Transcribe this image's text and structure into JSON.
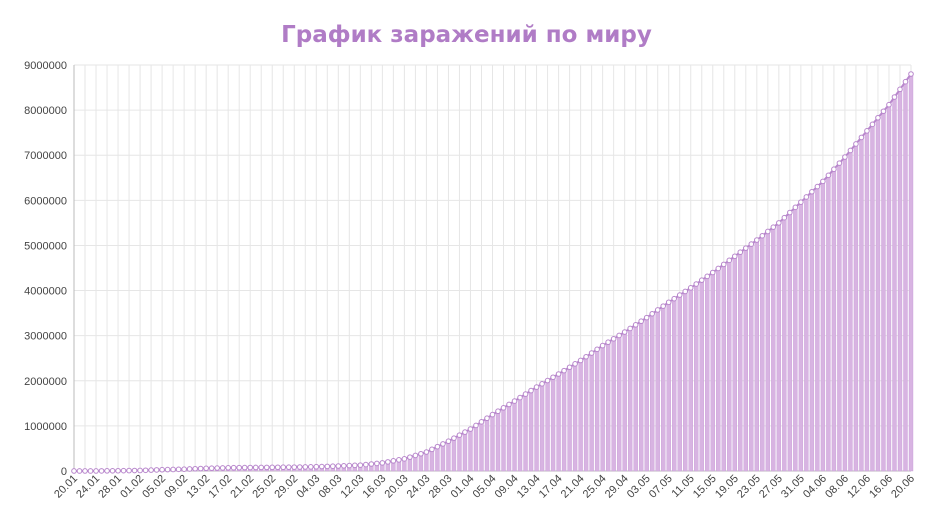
{
  "chart_data": {
    "type": "bar",
    "title": "График заражений по миру",
    "series_type_overlay": "line",
    "start_date": "2020-01-20",
    "x_tick_labels": [
      "20.01",
      "24.01",
      "28.01",
      "01.02",
      "05.02",
      "09.02",
      "13.02",
      "17.02",
      "21.02",
      "25.02",
      "29.02",
      "04.03",
      "08.03",
      "12.03",
      "16.03",
      "20.03",
      "24.03",
      "28.03",
      "01.04",
      "05.04",
      "09.04",
      "13.04",
      "17.04",
      "21.04",
      "25.04",
      "29.04",
      "03.05",
      "07.05",
      "11.05",
      "15.05",
      "19.05",
      "23.05",
      "27.05",
      "31.05",
      "04.06",
      "08.06",
      "12.06",
      "16.06",
      "20.06"
    ],
    "x_tick_step_days": 4,
    "anchor_values": [
      {
        "date": "20.01",
        "value": 300
      },
      {
        "date": "24.01",
        "value": 900
      },
      {
        "date": "28.01",
        "value": 5500
      },
      {
        "date": "01.02",
        "value": 12000
      },
      {
        "date": "05.02",
        "value": 28000
      },
      {
        "date": "09.02",
        "value": 40000
      },
      {
        "date": "13.02",
        "value": 60000
      },
      {
        "date": "17.02",
        "value": 71000
      },
      {
        "date": "21.02",
        "value": 77000
      },
      {
        "date": "25.02",
        "value": 81000
      },
      {
        "date": "29.02",
        "value": 86000
      },
      {
        "date": "04.03",
        "value": 95000
      },
      {
        "date": "08.03",
        "value": 110000
      },
      {
        "date": "12.03",
        "value": 130000
      },
      {
        "date": "16.03",
        "value": 180000
      },
      {
        "date": "20.03",
        "value": 270000
      },
      {
        "date": "24.03",
        "value": 420000
      },
      {
        "date": "28.03",
        "value": 660000
      },
      {
        "date": "01.04",
        "value": 930000
      },
      {
        "date": "05.04",
        "value": 1250000
      },
      {
        "date": "09.04",
        "value": 1550000
      },
      {
        "date": "13.04",
        "value": 1860000
      },
      {
        "date": "17.04",
        "value": 2150000
      },
      {
        "date": "21.04",
        "value": 2450000
      },
      {
        "date": "25.04",
        "value": 2780000
      },
      {
        "date": "29.04",
        "value": 3080000
      },
      {
        "date": "03.05",
        "value": 3400000
      },
      {
        "date": "07.05",
        "value": 3740000
      },
      {
        "date": "11.05",
        "value": 4060000
      },
      {
        "date": "15.05",
        "value": 4400000
      },
      {
        "date": "19.05",
        "value": 4760000
      },
      {
        "date": "23.05",
        "value": 5120000
      },
      {
        "date": "27.05",
        "value": 5500000
      },
      {
        "date": "31.05",
        "value": 5960000
      },
      {
        "date": "04.06",
        "value": 6420000
      },
      {
        "date": "08.06",
        "value": 6960000
      },
      {
        "date": "12.06",
        "value": 7540000
      },
      {
        "date": "16.06",
        "value": 8120000
      },
      {
        "date": "20.06",
        "value": 8800000
      }
    ],
    "ylim": [
      0,
      9000000
    ],
    "y_tick_labels": [
      "0",
      "1000000",
      "2000000",
      "3000000",
      "4000000",
      "5000000",
      "6000000",
      "7000000",
      "8000000",
      "9000000"
    ],
    "grid": true,
    "legend": "none"
  },
  "colors": {
    "title": "#b07cc6",
    "bar_fill": "#d8b4e2",
    "bar_stroke": "#c79bd6",
    "line": "#b887cc",
    "grid": "#e6e6e6",
    "axis": "#bbbbbb"
  }
}
